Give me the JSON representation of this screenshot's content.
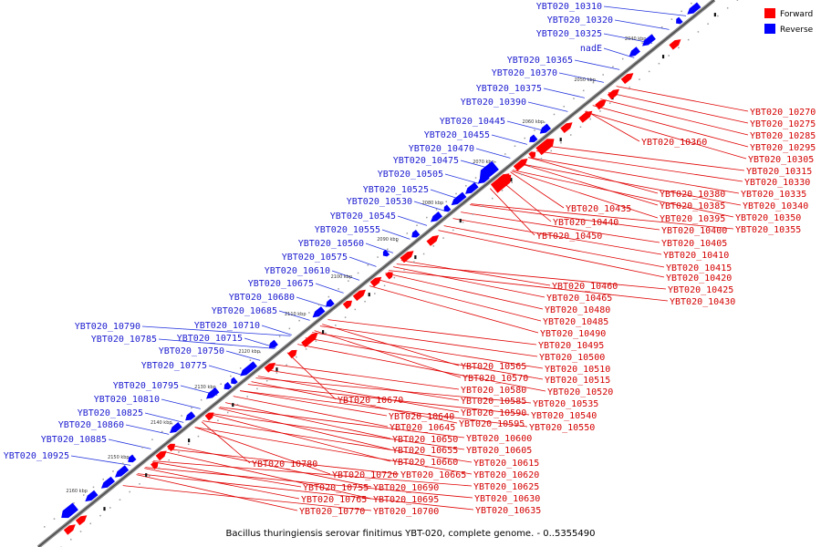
{
  "caption": "Bacillus thuringiensis serovar finitimus YBT-020, complete genome. - 0..5355490",
  "legend": [
    {
      "label": "Forward",
      "color": "#ff0000"
    },
    {
      "label": "Reverse",
      "color": "#0000ff"
    }
  ],
  "colors": {
    "forward": "#ff0000",
    "reverse": "#0000ff",
    "backbone": "#6e6e6e",
    "leader_fwd": "#e00000",
    "leader_rev": "#2233dd"
  },
  "ticks": [
    "2030 kbp",
    "2040 kbp",
    "2050 kbp",
    "2060 kbp",
    "2070 kbp",
    "2080 kbp",
    "2090 kbp",
    "2100 kbp",
    "2110 kbp",
    "2120 kbp",
    "2130 kbp",
    "2140 kbp",
    "2150 kbp",
    "2160 kbp"
  ],
  "forward_labels": [
    "YBT020_10270",
    "YBT020_10275",
    "YBT020_10285",
    "YBT020_10295",
    "YBT020_10305",
    "YBT020_10315",
    "YBT020_10330",
    "YBT020_10335",
    "YBT020_10340",
    "YBT020_10350",
    "YBT020_10355",
    "YBT020_10360",
    "YBT020_10380",
    "YBT020_10385",
    "YBT020_10395",
    "YBT020_10400",
    "YBT020_10405",
    "YBT020_10410",
    "YBT020_10415",
    "YBT020_10420",
    "YBT020_10425",
    "YBT020_10430",
    "YBT020_10435",
    "YBT020_10440",
    "YBT020_10450",
    "YBT020_10460",
    "YBT020_10465",
    "YBT020_10480",
    "YBT020_10485",
    "YBT020_10490",
    "YBT020_10495",
    "YBT020_10500",
    "YBT020_10510",
    "YBT020_10515",
    "YBT020_10520",
    "YBT020_10535",
    "YBT020_10540",
    "YBT020_10550",
    "YBT020_10565",
    "YBT020_10570",
    "YBT020_10580",
    "YBT020_10585",
    "YBT020_10590",
    "YBT020_10595",
    "YBT020_10670",
    "YBT020_10640",
    "YBT020_10645",
    "YBT020_10650",
    "YBT020_10655",
    "YBT020_10660",
    "YBT020_10665",
    "YBT020_10600",
    "YBT020_10605",
    "YBT020_10615",
    "YBT020_10620",
    "YBT020_10625",
    "YBT020_10630",
    "YBT020_10635",
    "YBT020_10780",
    "YBT020_10720",
    "YBT020_10755",
    "YBT020_10765",
    "YBT020_10770",
    "YBT020_10690",
    "YBT020_10695",
    "YBT020_10700"
  ],
  "reverse_labels": [
    "YBT020_10310",
    "YBT020_10320",
    "YBT020_10325",
    "nadE",
    "YBT020_10365",
    "YBT020_10370",
    "YBT020_10375",
    "YBT020_10390",
    "YBT020_10445",
    "YBT020_10455",
    "YBT020_10470",
    "YBT020_10475",
    "YBT020_10505",
    "YBT020_10525",
    "YBT020_10530",
    "YBT020_10545",
    "YBT020_10555",
    "YBT020_10560",
    "YBT020_10575",
    "YBT020_10610",
    "YBT020_10675",
    "YBT020_10680",
    "YBT020_10685",
    "YBT020_10710",
    "YBT020_10715",
    "YBT020_10750",
    "YBT020_10775",
    "YBT020_10790",
    "YBT020_10785",
    "YBT020_10795",
    "YBT020_10810",
    "YBT020_10825",
    "YBT020_10860",
    "YBT020_10885",
    "YBT020_10925"
  ]
}
